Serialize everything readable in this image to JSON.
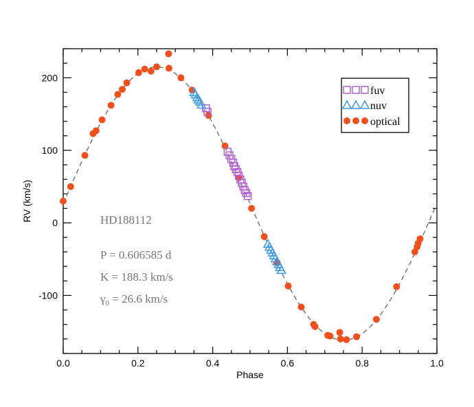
{
  "chart_data": {
    "type": "scatter",
    "xlabel": "Phase",
    "ylabel": "RV (km/s)",
    "xlim": [
      0.0,
      1.0
    ],
    "ylim": [
      -180,
      240
    ],
    "xticks": [
      0.0,
      0.2,
      0.4,
      0.6,
      0.8,
      1.0
    ],
    "xtick_labels": [
      "0.0",
      "0.2",
      "0.4",
      "0.6",
      "0.8",
      "1.0"
    ],
    "yticks": [
      -100,
      0,
      100,
      200
    ],
    "ytick_labels": [
      "-100",
      "0",
      "100",
      "200"
    ],
    "legend_position": "top-right",
    "annotations": {
      "star": "HD188112",
      "period": "P = 0.606585 d",
      "amplitude": "K = 188.3 km/s",
      "gamma_prefix": "γ",
      "gamma_sub": "0",
      "gamma_rest": " = 26.6 km/s"
    },
    "model": {
      "name": "sine fit",
      "P_days": 0.606585,
      "K_kms": 188.3,
      "gamma_kms": 26.6,
      "style": "dashed",
      "color": "#707070"
    },
    "series": [
      {
        "name": "fuv",
        "marker": "square",
        "color": "#b060d0",
        "x": [
          0.382,
          0.386,
          0.44,
          0.445,
          0.45,
          0.455,
          0.458,
          0.462,
          0.466,
          0.47,
          0.474,
          0.478,
          0.482,
          0.486,
          0.49,
          0.494
        ],
        "y": [
          158,
          153,
          98,
          93,
          88,
          83,
          78,
          74,
          70,
          65,
          60,
          55,
          50,
          45,
          41,
          37
        ]
      },
      {
        "name": "nuv",
        "marker": "triangle",
        "color": "#3a9ae8",
        "x": [
          0.35,
          0.354,
          0.358,
          0.362,
          0.366,
          0.37,
          0.548,
          0.552,
          0.556,
          0.56,
          0.564,
          0.568,
          0.572,
          0.576,
          0.58,
          0.584
        ],
        "y": [
          180,
          177,
          173,
          170,
          167,
          163,
          -29,
          -33,
          -37,
          -41,
          -45,
          -49,
          -53,
          -57,
          -61,
          -65
        ]
      },
      {
        "name": "optical",
        "marker": "circle",
        "color": "#f0501e",
        "x": [
          0.0,
          0.02,
          0.058,
          0.08,
          0.088,
          0.104,
          0.128,
          0.146,
          0.158,
          0.17,
          0.202,
          0.218,
          0.235,
          0.25,
          0.282,
          0.283,
          0.315,
          0.345,
          0.389,
          0.433,
          0.47,
          0.504,
          0.538,
          0.573,
          0.602,
          0.637,
          0.67,
          0.674,
          0.708,
          0.714,
          0.74,
          0.742,
          0.758,
          0.785,
          0.838,
          0.892,
          0.941,
          0.947,
          0.95,
          0.955
        ],
        "y": [
          30,
          50,
          93,
          123,
          127,
          142,
          162,
          177,
          184,
          193,
          207,
          212,
          209,
          215,
          233,
          213,
          200,
          183,
          148,
          106,
          62,
          20,
          -19,
          -55,
          -87,
          -116,
          -140,
          -143,
          -155,
          -156,
          -151,
          -160,
          -161,
          -157,
          -133,
          -88,
          -40,
          -33,
          -28,
          -22
        ]
      }
    ]
  }
}
